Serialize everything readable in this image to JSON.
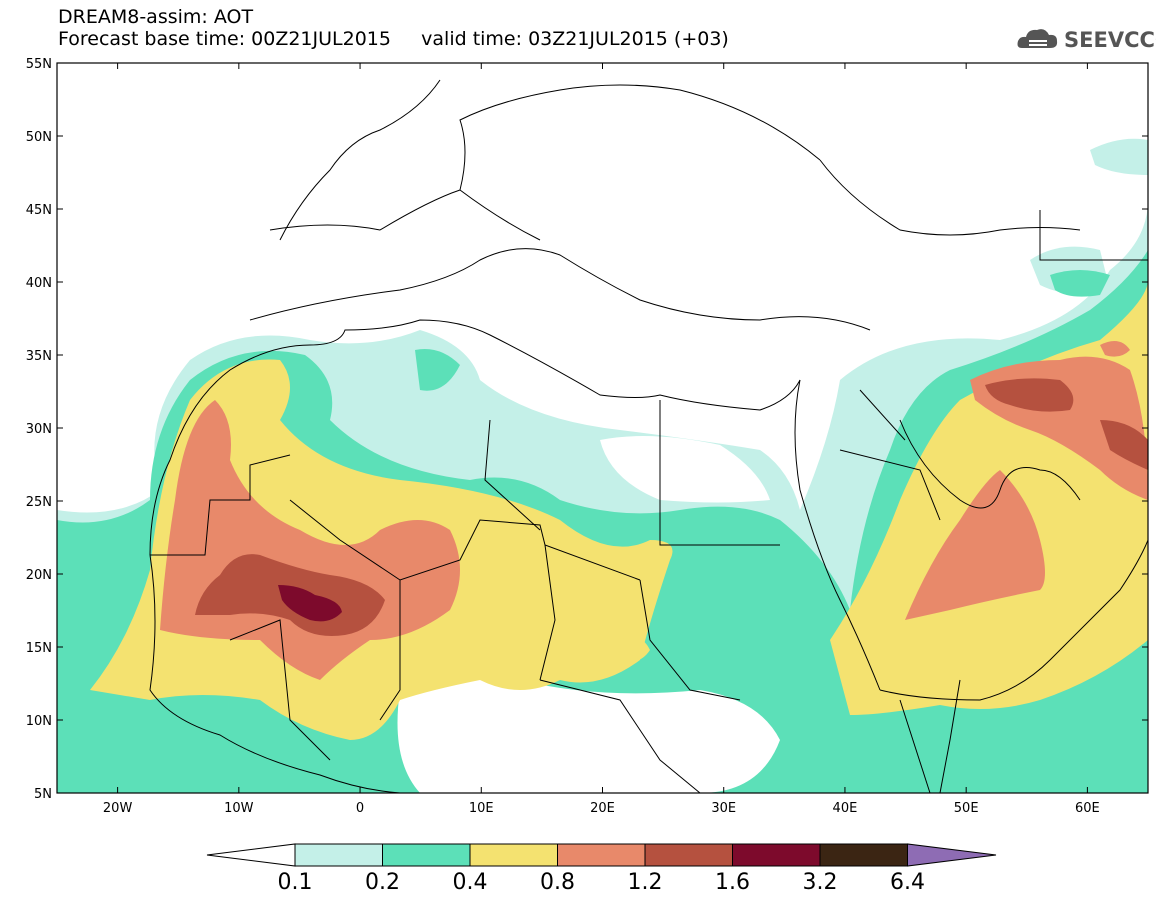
{
  "header": {
    "product_title": "DREAM8-assim: AOT",
    "forecast_line": "Forecast base time: 00Z21JUL2015     valid time: 03Z21JUL2015 (+03)"
  },
  "logo": {
    "text": "SEEVCCC",
    "icon": "cloud-icon"
  },
  "map": {
    "projection": "lat-lon",
    "lon_range": [
      -25,
      65
    ],
    "lat_range": [
      5,
      55
    ],
    "lat_ticks": [
      "5N",
      "10N",
      "15N",
      "20N",
      "25N",
      "30N",
      "35N",
      "40N",
      "45N",
      "50N",
      "55N"
    ],
    "lon_ticks": [
      "20W",
      "10W",
      "0",
      "10E",
      "20E",
      "30E",
      "40E",
      "50E",
      "60E"
    ],
    "variable": "Aerosol Optical Thickness"
  },
  "colorbar": {
    "levels": [
      "0.1",
      "0.2",
      "0.4",
      "0.8",
      "1.2",
      "1.6",
      "3.2",
      "6.4"
    ],
    "colors": [
      "#c4f0e8",
      "#5ce0b8",
      "#f4e270",
      "#e8896a",
      "#b5513f",
      "#7d0a2c",
      "#3b2513",
      "#8e6cb4"
    ],
    "under_color": "#ffffff"
  }
}
